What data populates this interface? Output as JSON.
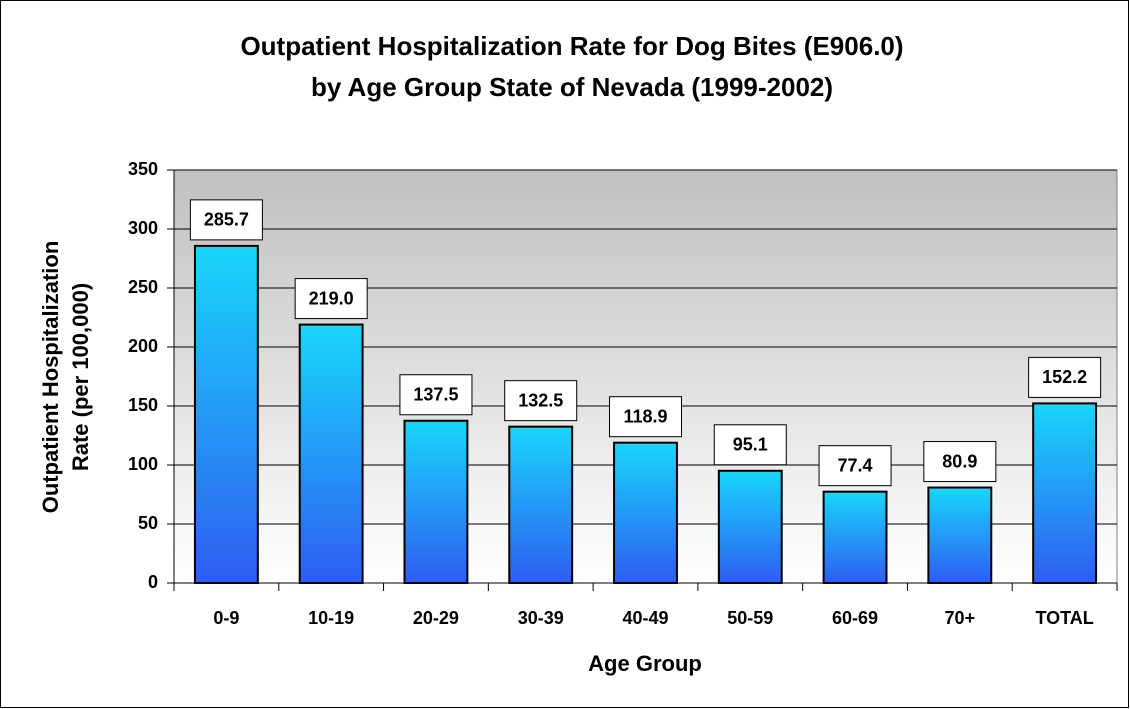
{
  "chart_data": {
    "type": "bar",
    "title": [
      "Outpatient Hospitalization Rate for Dog Bites (E906.0)",
      "by Age Group  State of Nevada (1999-2002)"
    ],
    "x_label": "Age Group",
    "y_label": [
      "Outpatient Hospitalization",
      "Rate (per 100,000)"
    ],
    "categories": [
      "0-9",
      "10-19",
      "20-29",
      "30-39",
      "40-49",
      "50-59",
      "60-69",
      "70+",
      "TOTAL"
    ],
    "values": [
      285.7,
      219.0,
      137.5,
      132.5,
      118.9,
      95.1,
      77.4,
      80.9,
      152.2
    ],
    "value_labels": [
      "285.7",
      "219.0",
      "137.5",
      "132.5",
      "118.9",
      "95.1",
      "77.4",
      "80.9",
      "152.2"
    ],
    "color": [
      "#18d6fb",
      "#2f5df2"
    ],
    "background": [
      "#c0c0c0",
      "#ffffff"
    ],
    "ylim": [
      0,
      350
    ],
    "yticks": [
      0,
      50,
      100,
      150,
      200,
      250,
      300,
      350
    ],
    "grid": true
  }
}
